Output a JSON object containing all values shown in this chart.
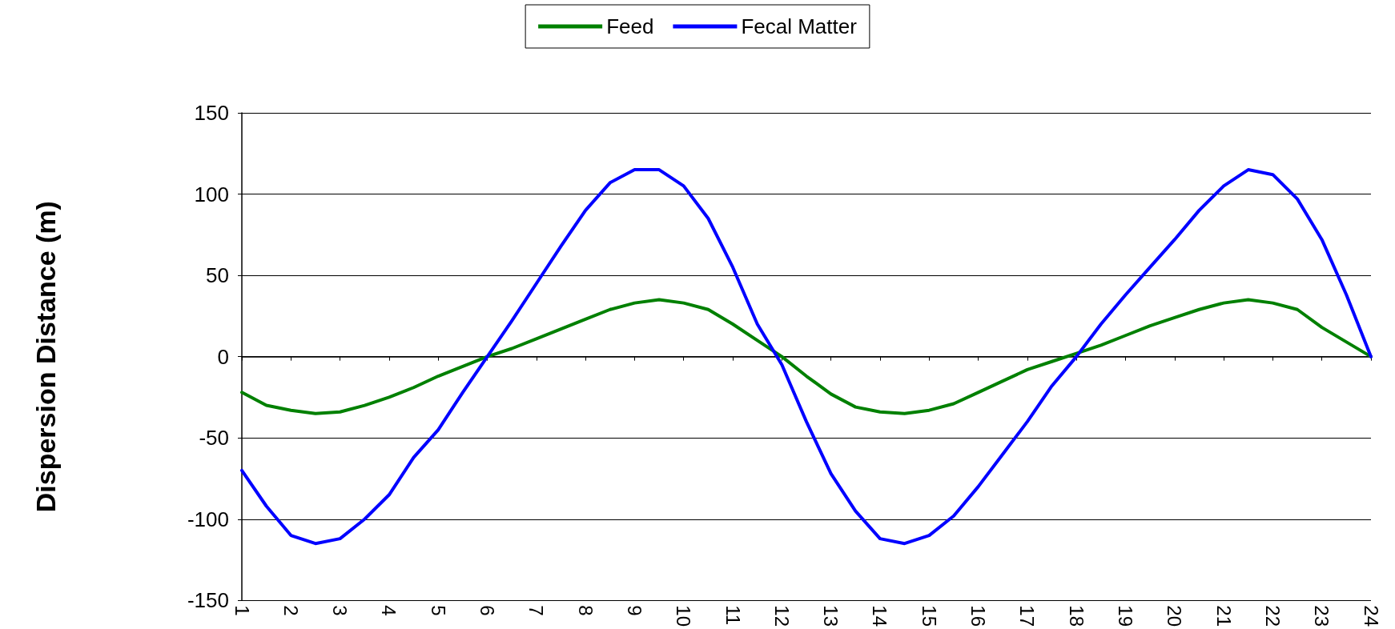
{
  "chart_data": {
    "type": "line",
    "ylabel": "Dispersion Distance (m)",
    "x": [
      1,
      1.5,
      2,
      2.5,
      3,
      3.5,
      4,
      4.5,
      5,
      5.5,
      6,
      6.5,
      7,
      7.5,
      8,
      8.5,
      9,
      9.5,
      10,
      10.5,
      11,
      11.5,
      12,
      12.5,
      13,
      13.5,
      14,
      14.5,
      15,
      15.5,
      16,
      16.5,
      17,
      17.5,
      18,
      18.5,
      19,
      19.5,
      20,
      20.5,
      21,
      21.5,
      22,
      22.5,
      23,
      23.5,
      24
    ],
    "series": [
      {
        "name": "Feed",
        "color": "#008000",
        "values": [
          -22,
          -30,
          -33,
          -35,
          -34,
          -30,
          -25,
          -19,
          -12,
          -6,
          0,
          5,
          11,
          17,
          23,
          29,
          33,
          35,
          33,
          29,
          20,
          10,
          0,
          -12,
          -23,
          -31,
          -34,
          -35,
          -33,
          -29,
          -22,
          -15,
          -8,
          -3,
          2,
          7,
          13,
          19,
          24,
          29,
          33,
          35,
          33,
          29,
          18,
          9,
          0
        ]
      },
      {
        "name": "Fecal Matter",
        "color": "#0000ff",
        "values": [
          -70,
          -92,
          -110,
          -115,
          -112,
          -100,
          -85,
          -62,
          -45,
          -22,
          0,
          22,
          45,
          68,
          90,
          107,
          115,
          115,
          105,
          85,
          55,
          20,
          -5,
          -40,
          -72,
          -95,
          -112,
          -115,
          -110,
          -98,
          -80,
          -60,
          -40,
          -18,
          0,
          20,
          38,
          55,
          72,
          90,
          105,
          115,
          112,
          97,
          72,
          38,
          0
        ]
      }
    ],
    "xlim": [
      1,
      24
    ],
    "xticks": [
      1,
      2,
      3,
      4,
      5,
      6,
      7,
      8,
      9,
      10,
      11,
      12,
      13,
      14,
      15,
      16,
      17,
      18,
      19,
      20,
      21,
      22,
      23,
      24
    ],
    "ylim": [
      -150,
      150
    ],
    "yticks": [
      -150,
      -100,
      -50,
      0,
      50,
      100,
      150
    ],
    "grid": "y",
    "legend": "top",
    "marker": "none",
    "line_style": "solid"
  }
}
